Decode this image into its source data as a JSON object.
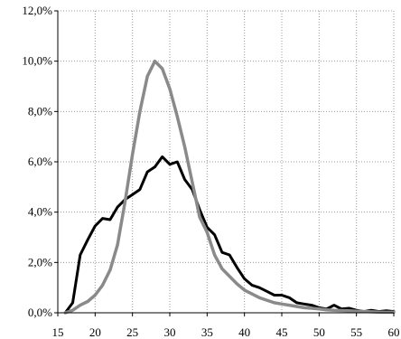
{
  "chart_data": {
    "type": "line",
    "title": "",
    "xlabel": "",
    "ylabel": "",
    "xlim": [
      15,
      60
    ],
    "ylim": [
      0,
      0.12
    ],
    "grid": true,
    "legend": "none",
    "x_ticks": [
      15,
      20,
      25,
      30,
      35,
      40,
      45,
      50,
      55,
      60
    ],
    "x_tick_labels": [
      "15",
      "20",
      "25",
      "30",
      "35",
      "40",
      "45",
      "50",
      "55",
      "60"
    ],
    "y_ticks": [
      0,
      0.02,
      0.04,
      0.06,
      0.08,
      0.1,
      0.12
    ],
    "y_tick_labels": [
      "0,0%",
      "2,0%",
      "4,0%",
      "6,0%",
      "8,0%",
      "10,0%",
      "12,0%"
    ],
    "series": [
      {
        "color": "#000000",
        "stroke_width": 3,
        "points": [
          [
            16,
            0.0
          ],
          [
            17,
            0.004
          ],
          [
            18,
            0.023
          ],
          [
            19,
            0.029
          ],
          [
            20,
            0.0345
          ],
          [
            21,
            0.0375
          ],
          [
            22,
            0.037
          ],
          [
            23,
            0.042
          ],
          [
            24,
            0.045
          ],
          [
            25,
            0.047
          ],
          [
            26,
            0.049
          ],
          [
            27,
            0.056
          ],
          [
            28,
            0.058
          ],
          [
            29,
            0.062
          ],
          [
            30,
            0.059
          ],
          [
            31,
            0.06
          ],
          [
            32,
            0.053
          ],
          [
            33,
            0.049
          ],
          [
            34,
            0.041
          ],
          [
            35,
            0.034
          ],
          [
            36,
            0.031
          ],
          [
            37,
            0.024
          ],
          [
            38,
            0.023
          ],
          [
            39,
            0.018
          ],
          [
            40,
            0.0135
          ],
          [
            41,
            0.011
          ],
          [
            42,
            0.01
          ],
          [
            43,
            0.0085
          ],
          [
            44,
            0.007
          ],
          [
            45,
            0.007
          ],
          [
            46,
            0.006
          ],
          [
            47,
            0.004
          ],
          [
            48,
            0.0035
          ],
          [
            49,
            0.003
          ],
          [
            50,
            0.002
          ],
          [
            51,
            0.0015
          ],
          [
            52,
            0.003
          ],
          [
            53,
            0.0015
          ],
          [
            54,
            0.0018
          ],
          [
            55,
            0.001
          ],
          [
            56,
            0.0005
          ],
          [
            57,
            0.001
          ],
          [
            58,
            0.0005
          ],
          [
            59,
            0.0008
          ],
          [
            60,
            0.0005
          ]
        ]
      },
      {
        "color": "#8a8a8a",
        "stroke_width": 3.5,
        "points": [
          [
            16,
            0.0
          ],
          [
            17,
            0.001
          ],
          [
            18,
            0.003
          ],
          [
            19,
            0.0045
          ],
          [
            20,
            0.007
          ],
          [
            21,
            0.011
          ],
          [
            22,
            0.017
          ],
          [
            23,
            0.027
          ],
          [
            24,
            0.044
          ],
          [
            25,
            0.063
          ],
          [
            26,
            0.08
          ],
          [
            27,
            0.094
          ],
          [
            28,
            0.1
          ],
          [
            29,
            0.097
          ],
          [
            30,
            0.089
          ],
          [
            31,
            0.078
          ],
          [
            32,
            0.066
          ],
          [
            33,
            0.052
          ],
          [
            34,
            0.038
          ],
          [
            35,
            0.032
          ],
          [
            36,
            0.023
          ],
          [
            37,
            0.0175
          ],
          [
            38,
            0.0145
          ],
          [
            39,
            0.0115
          ],
          [
            40,
            0.009
          ],
          [
            41,
            0.0075
          ],
          [
            42,
            0.006
          ],
          [
            43,
            0.005
          ],
          [
            44,
            0.004
          ],
          [
            45,
            0.0035
          ],
          [
            46,
            0.003
          ],
          [
            47,
            0.0025
          ],
          [
            48,
            0.002
          ],
          [
            49,
            0.0018
          ],
          [
            50,
            0.0015
          ],
          [
            51,
            0.0012
          ],
          [
            52,
            0.001
          ],
          [
            53,
            0.0009
          ],
          [
            54,
            0.0008
          ],
          [
            55,
            0.0006
          ],
          [
            56,
            0.0005
          ],
          [
            57,
            0.0004
          ],
          [
            58,
            0.0003
          ],
          [
            59,
            0.0002
          ],
          [
            60,
            0.0002
          ]
        ]
      }
    ]
  }
}
